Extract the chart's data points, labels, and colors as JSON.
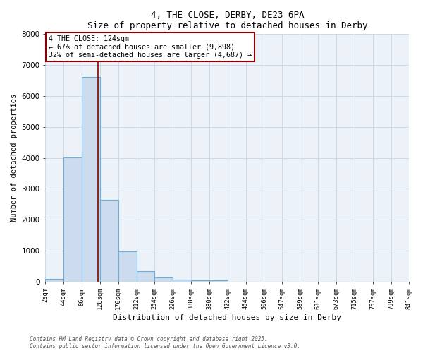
{
  "title1": "4, THE CLOSE, DERBY, DE23 6PA",
  "title2": "Size of property relative to detached houses in Derby",
  "xlabel": "Distribution of detached houses by size in Derby",
  "ylabel": "Number of detached properties",
  "bar_color": "#ccdcee",
  "bar_edge_color": "#6baed6",
  "bin_edges": [
    2,
    44,
    86,
    128,
    170,
    212,
    254,
    296,
    338,
    380,
    422,
    464,
    506,
    547,
    589,
    631,
    673,
    715,
    757,
    799,
    841
  ],
  "bar_heights": [
    100,
    4020,
    6620,
    2650,
    975,
    340,
    130,
    75,
    50,
    40,
    5,
    2,
    1,
    1,
    1,
    0,
    0,
    0,
    0,
    0
  ],
  "property_size": 124,
  "vline_color": "#8b0000",
  "annotation_line1": "4 THE CLOSE: 124sqm",
  "annotation_line2": "← 67% of detached houses are smaller (9,898)",
  "annotation_line3": "32% of semi-detached houses are larger (4,687) →",
  "annotation_box_color": "#8b0000",
  "annotation_bg": "white",
  "ylim": [
    0,
    8000
  ],
  "yticks": [
    0,
    1000,
    2000,
    3000,
    4000,
    5000,
    6000,
    7000,
    8000
  ],
  "tick_labels": [
    "2sqm",
    "44sqm",
    "86sqm",
    "128sqm",
    "170sqm",
    "212sqm",
    "254sqm",
    "296sqm",
    "338sqm",
    "380sqm",
    "422sqm",
    "464sqm",
    "506sqm",
    "547sqm",
    "589sqm",
    "631sqm",
    "673sqm",
    "715sqm",
    "757sqm",
    "799sqm",
    "841sqm"
  ],
  "footnote1": "Contains HM Land Registry data © Crown copyright and database right 2025.",
  "footnote2": "Contains public sector information licensed under the Open Government Licence v3.0.",
  "grid_color": "#ccd8e8",
  "bg_color": "#edf2f9"
}
